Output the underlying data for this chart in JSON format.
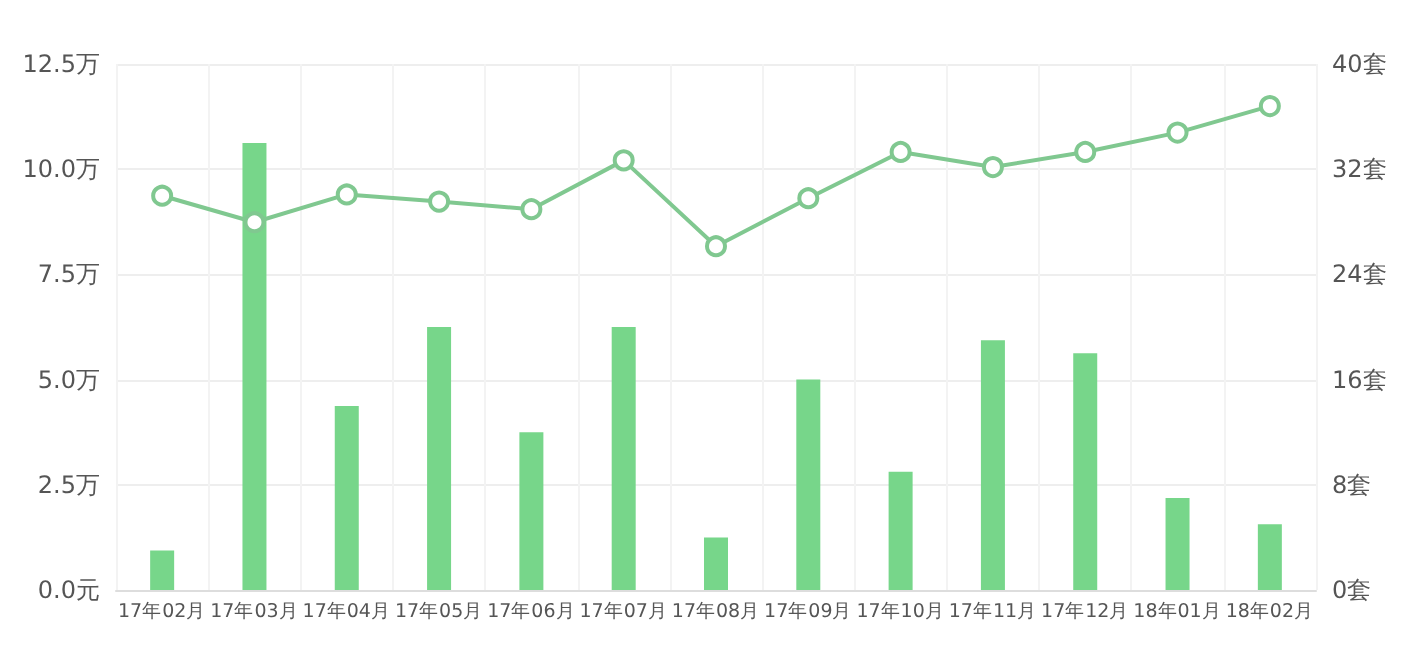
{
  "chart_data": {
    "type": "bar",
    "categories": [
      "17年02月",
      "17年03月",
      "17年04月",
      "17年05月",
      "17年06月",
      "17年07月",
      "17年08月",
      "17年09月",
      "17年10月",
      "17年11月",
      "17年12月",
      "18年01月",
      "18年02月"
    ],
    "series": [
      {
        "axis": "y2",
        "color": "#77d68a",
        "values": [
          3,
          34,
          14,
          20,
          12,
          20,
          4,
          16,
          9,
          19,
          18,
          7,
          5
        ]
      },
      {
        "type": "line",
        "axis": "y",
        "color": "#80c890",
        "marker": "circle",
        "values": [
          9.37,
          8.74,
          9.4,
          9.23,
          9.05,
          10.21,
          8.17,
          9.31,
          10.41,
          10.05,
          10.41,
          10.87,
          11.5
        ]
      }
    ],
    "ylim": [
      0,
      12.5
    ],
    "yticks": [
      {
        "value": 0,
        "label": "0.0元"
      },
      {
        "value": 2.5,
        "label": "2.5万"
      },
      {
        "value": 5,
        "label": "5.0万"
      },
      {
        "value": 7.5,
        "label": "7.5万"
      },
      {
        "value": 10,
        "label": "10.0万"
      },
      {
        "value": 12.5,
        "label": "12.5万"
      }
    ],
    "y2lim": [
      0,
      40
    ],
    "y2ticks": [
      {
        "value": 0,
        "label": "0套"
      },
      {
        "value": 8,
        "label": "8套"
      },
      {
        "value": 16,
        "label": "16套"
      },
      {
        "value": 24,
        "label": "24套"
      },
      {
        "value": 32,
        "label": "32套"
      },
      {
        "value": 40,
        "label": "40套"
      }
    ],
    "grid": true
  }
}
